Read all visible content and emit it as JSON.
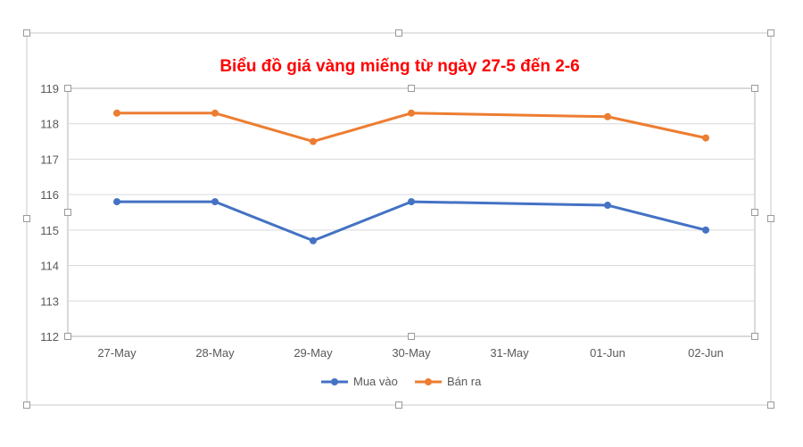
{
  "chart_data": {
    "type": "line",
    "title": "Biểu đồ giá vàng miếng từ ngày 27-5 đến 2-6",
    "xlabel": "",
    "ylabel": "",
    "categories": [
      "27-May",
      "28-May",
      "29-May",
      "30-May",
      "31-May",
      "01-Jun",
      "02-Jun"
    ],
    "x_positions": [
      0,
      1,
      2,
      3,
      4,
      5,
      6
    ],
    "series": [
      {
        "name": "Mua vào",
        "color": "#4472C4",
        "points": [
          {
            "x": 0,
            "y": 115.8
          },
          {
            "x": 1,
            "y": 115.8
          },
          {
            "x": 2,
            "y": 114.7
          },
          {
            "x": 3,
            "y": 115.8
          },
          {
            "x": 5,
            "y": 115.7
          },
          {
            "x": 6,
            "y": 115.0
          }
        ]
      },
      {
        "name": "Bán ra",
        "color": "#ED7D31",
        "points": [
          {
            "x": 0,
            "y": 118.3
          },
          {
            "x": 1,
            "y": 118.3
          },
          {
            "x": 2,
            "y": 117.5
          },
          {
            "x": 3,
            "y": 118.3
          },
          {
            "x": 5,
            "y": 118.2
          },
          {
            "x": 6,
            "y": 117.6
          }
        ]
      }
    ],
    "ylim": [
      112,
      119
    ],
    "yticks": [
      112,
      113,
      114,
      115,
      116,
      117,
      118,
      119
    ],
    "grid": true,
    "legend_position": "bottom",
    "title_color": "#FF0000"
  }
}
